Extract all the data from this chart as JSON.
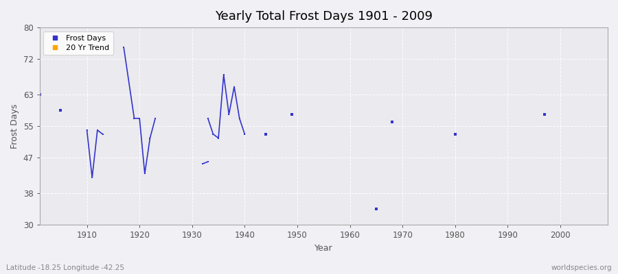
{
  "title": "Yearly Total Frost Days 1901 - 2009",
  "xlabel": "Year",
  "ylabel": "Frost Days",
  "xlim": [
    1901,
    2009
  ],
  "ylim": [
    30,
    80
  ],
  "yticks": [
    30,
    38,
    47,
    55,
    63,
    72,
    80
  ],
  "xticks": [
    1910,
    1920,
    1930,
    1940,
    1950,
    1960,
    1970,
    1980,
    1990,
    2000
  ],
  "background_color": "#f0f0f5",
  "plot_bg_color": "#eaeaef",
  "line_color": "#3333cc",
  "marker_color": "#3333cc",
  "subtitle": "Latitude -18.25 Longitude -42.25",
  "watermark": "worldspecies.org",
  "connected_segments": [
    [
      [
        1910,
        54
      ],
      [
        1911,
        42
      ],
      [
        1912,
        54
      ],
      [
        1913,
        53
      ]
    ],
    [
      [
        1917,
        75
      ],
      [
        1919,
        57
      ],
      [
        1920,
        57
      ],
      [
        1921,
        43
      ],
      [
        1922,
        52
      ],
      [
        1923,
        57
      ]
    ],
    [
      [
        1932,
        45.5
      ],
      [
        1933,
        46
      ]
    ],
    [
      [
        1933,
        57
      ],
      [
        1934,
        53
      ],
      [
        1935,
        52
      ],
      [
        1936,
        68
      ],
      [
        1937,
        58
      ],
      [
        1938,
        65
      ],
      [
        1939,
        57
      ],
      [
        1940,
        53
      ]
    ]
  ],
  "isolated_points": [
    [
      1901,
      63
    ],
    [
      1905,
      59
    ],
    [
      1944,
      53
    ],
    [
      1949,
      58
    ],
    [
      1965,
      34
    ],
    [
      1968,
      56
    ],
    [
      1980,
      53
    ],
    [
      1997,
      58
    ]
  ]
}
